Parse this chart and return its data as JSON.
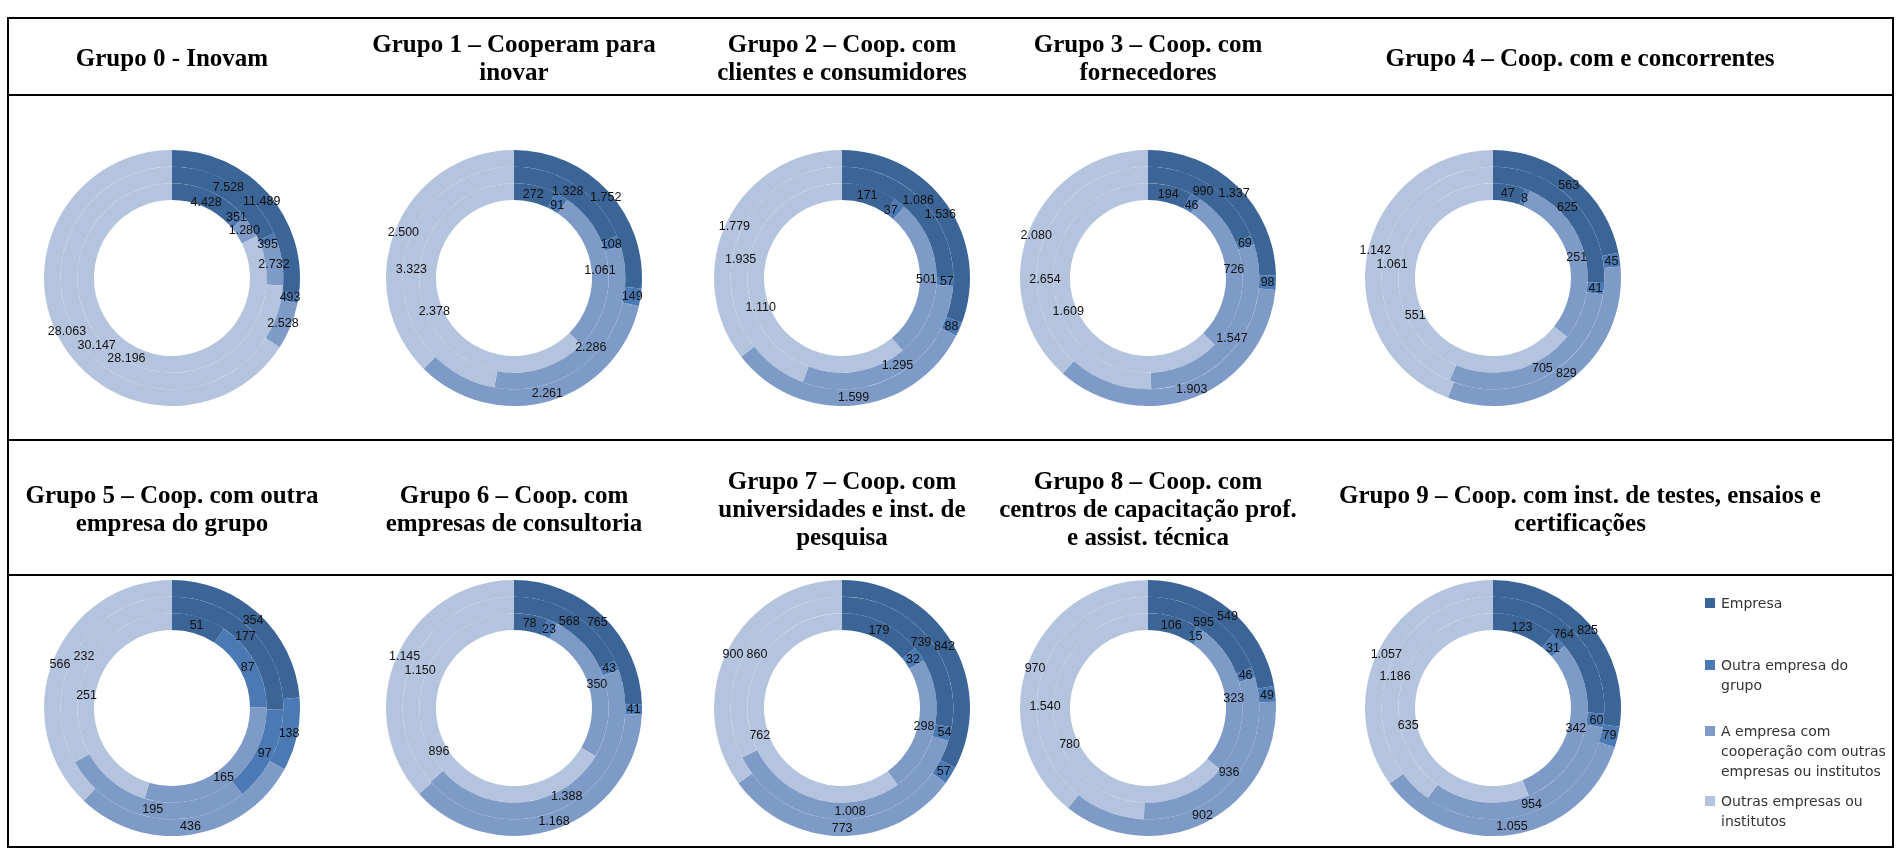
{
  "chart_data": [
    {
      "type": "donut",
      "title": "Grupo 0 - Inovam",
      "colors": [
        "#3b6596",
        "#4a79b3",
        "#7e9bc8",
        "#b5c4de"
      ],
      "legend": false,
      "series": [
        {
          "values": [
            4428,
            351,
            1280,
            28196
          ],
          "value_labels": [
            "4.428",
            "351",
            "1.280",
            "28.196"
          ]
        },
        {
          "values": [
            7528,
            395,
            2732,
            30147
          ],
          "value_labels": [
            "7.528",
            "395",
            "2.732",
            "30.147"
          ]
        },
        {
          "values": [
            11489,
            493,
            2528,
            28063
          ],
          "value_labels": [
            "11.489",
            "493",
            "2.528",
            "28.063"
          ]
        }
      ]
    },
    {
      "type": "donut",
      "title": "Grupo 1 – Cooperam para inovar",
      "colors": [
        "#3b6596",
        "#4a79b3",
        "#7e9bc8",
        "#b5c4de"
      ],
      "legend": false,
      "series": [
        {
          "values": [
            272,
            91,
            1061,
            2378
          ],
          "value_labels": [
            "272",
            "91",
            "1.061",
            "2.378"
          ]
        },
        {
          "values": [
            1328,
            108,
            2286,
            3323
          ],
          "value_labels": [
            "1.328",
            "108",
            "2.286",
            "3.323"
          ]
        },
        {
          "values": [
            1752,
            149,
            2261,
            2500
          ],
          "value_labels": [
            "1.752",
            "149",
            "2.261",
            "2.500"
          ]
        }
      ]
    },
    {
      "type": "donut",
      "title": "Grupo 2 – Coop. com clientes e consumidores",
      "colors": [
        "#3b6596",
        "#4a79b3",
        "#7e9bc8",
        "#b5c4de"
      ],
      "legend": false,
      "series": [
        {
          "values": [
            171,
            37,
            501,
            1110
          ],
          "value_labels": [
            "171",
            "37",
            "501",
            "1.110"
          ]
        },
        {
          "values": [
            1086,
            57,
            1295,
            1935
          ],
          "value_labels": [
            "1.086",
            "57",
            "1.295",
            "1.935"
          ]
        },
        {
          "values": [
            1536,
            88,
            1599,
            1779
          ],
          "value_labels": [
            "1.536",
            "88",
            "1.599",
            "1.779"
          ]
        }
      ]
    },
    {
      "type": "donut",
      "title": "Grupo 3 – Coop. com fornecedores",
      "colors": [
        "#3b6596",
        "#4a79b3",
        "#7e9bc8",
        "#b5c4de"
      ],
      "legend": false,
      "series": [
        {
          "values": [
            194,
            46,
            726,
            1609
          ],
          "value_labels": [
            "194",
            "46",
            "726",
            "1.609"
          ]
        },
        {
          "values": [
            990,
            69,
            1547,
            2654
          ],
          "value_labels": [
            "990",
            "69",
            "1.547",
            "2.654"
          ]
        },
        {
          "values": [
            1337,
            98,
            1903,
            2080
          ],
          "value_labels": [
            "1.337",
            "98",
            "1.903",
            "2.080"
          ]
        }
      ]
    },
    {
      "type": "donut",
      "title": "Grupo 4 – Coop. com e concorrentes",
      "colors": [
        "#3b6596",
        "#4a79b3",
        "#7e9bc8",
        "#b5c4de"
      ],
      "legend": false,
      "series": [
        {
          "values": [
            47,
            8,
            251,
            551
          ],
          "value_labels": [
            "47",
            "8",
            "251",
            "551"
          ]
        },
        {
          "values": [
            625,
            41,
            705,
            1061
          ],
          "value_labels": [
            "625",
            "41",
            "705",
            "1.061"
          ]
        },
        {
          "values": [
            563,
            45,
            829,
            1142
          ],
          "value_labels": [
            "563",
            "45",
            "829",
            "1.142"
          ]
        }
      ]
    },
    {
      "type": "donut",
      "title": "Grupo 5 – Coop. com outra empresa do grupo",
      "colors": [
        "#3b6596",
        "#4a79b3",
        "#7e9bc8",
        "#b5c4de"
      ],
      "legend": false,
      "series": [
        {
          "values": [
            51,
            87,
            165,
            251
          ],
          "value_labels": [
            "51",
            "87",
            "165",
            "251"
          ]
        },
        {
          "values": [
            177,
            97,
            195,
            232
          ],
          "value_labels": [
            "177",
            "97",
            "195",
            "232"
          ]
        },
        {
          "values": [
            354,
            138,
            436,
            566
          ],
          "value_labels": [
            "354",
            "138",
            "436",
            "566"
          ]
        }
      ]
    },
    {
      "type": "donut",
      "title": "Grupo 6 – Coop. com empresas de consultoria",
      "colors": [
        "#3b6596",
        "#4a79b3",
        "#7e9bc8",
        "#b5c4de"
      ],
      "legend": false,
      "series": [
        {
          "values": [
            78,
            23,
            350,
            896
          ],
          "value_labels": [
            "78",
            "23",
            "350",
            "896"
          ]
        },
        {
          "values": [
            568,
            43,
            1388,
            1150
          ],
          "value_labels": [
            "568",
            "43",
            "1.388",
            "1.150"
          ]
        },
        {
          "values": [
            765,
            41,
            1168,
            1145
          ],
          "value_labels": [
            "765",
            "41",
            "1.168",
            "1.145"
          ]
        }
      ]
    },
    {
      "type": "donut",
      "title": "Grupo 7 – Coop. com universidades e inst. de pesquisa",
      "colors": [
        "#3b6596",
        "#4a79b3",
        "#7e9bc8",
        "#b5c4de"
      ],
      "legend": false,
      "series": [
        {
          "values": [
            179,
            32,
            298,
            762
          ],
          "value_labels": [
            "179",
            "32",
            "298",
            "762"
          ]
        },
        {
          "values": [
            739,
            54,
            1008,
            860
          ],
          "value_labels": [
            "739",
            "54",
            "1.008",
            "860"
          ]
        },
        {
          "values": [
            842,
            57,
            773,
            900
          ],
          "value_labels": [
            "842",
            "57",
            "773",
            "900"
          ]
        }
      ]
    },
    {
      "type": "donut",
      "title": "Grupo 8 – Coop. com centros de capacitação prof. e assist. técnica",
      "colors": [
        "#3b6596",
        "#4a79b3",
        "#7e9bc8",
        "#b5c4de"
      ],
      "legend": false,
      "series": [
        {
          "values": [
            106,
            15,
            323,
            780
          ],
          "value_labels": [
            "106",
            "15",
            "323",
            "780"
          ]
        },
        {
          "values": [
            595,
            46,
            936,
            1540
          ],
          "value_labels": [
            "595",
            "46",
            "936",
            "1.540"
          ]
        },
        {
          "values": [
            549,
            49,
            902,
            970
          ],
          "value_labels": [
            "549",
            "49",
            "902",
            "970"
          ]
        }
      ]
    },
    {
      "type": "donut",
      "title": "Grupo 9 – Coop. com inst. de testes, ensaios e certificações",
      "categories": [
        "Empresa",
        "Outra empresa do grupo",
        "A empresa com cooperação com outras empresas ou institutos",
        "Outras empresas ou institutos"
      ],
      "colors": [
        "#3b6596",
        "#4a79b3",
        "#7e9bc8",
        "#b5c4de"
      ],
      "legend": "right",
      "series": [
        {
          "values": [
            123,
            31,
            342,
            635
          ],
          "value_labels": [
            "123",
            "31",
            "342",
            "635"
          ]
        },
        {
          "values": [
            764,
            60,
            954,
            1186
          ],
          "value_labels": [
            "764",
            "60",
            "954",
            "1.186"
          ]
        },
        {
          "values": [
            825,
            79,
            1055,
            1057
          ],
          "value_labels": [
            "825",
            "79",
            "1.055",
            "1.057"
          ]
        }
      ]
    }
  ]
}
